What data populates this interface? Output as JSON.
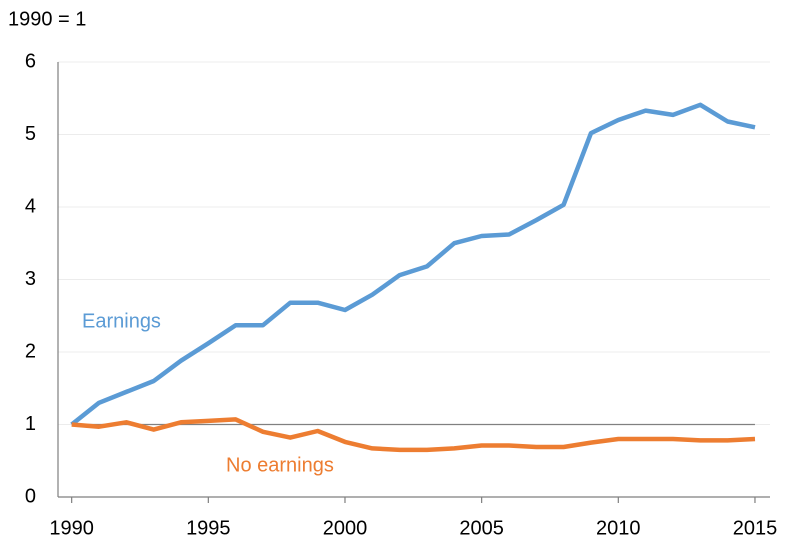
{
  "chart_data": {
    "type": "line",
    "subtitle": "1990 = 1",
    "x": [
      1990,
      1991,
      1992,
      1993,
      1994,
      1995,
      1996,
      1997,
      1998,
      1999,
      2000,
      2001,
      2002,
      2003,
      2004,
      2005,
      2006,
      2007,
      2008,
      2009,
      2010,
      2011,
      2012,
      2013,
      2014,
      2015
    ],
    "series": [
      {
        "name": "Earnings",
        "color": "#5b9bd5",
        "values": [
          1.0,
          1.3,
          1.45,
          1.6,
          1.88,
          2.12,
          2.37,
          2.37,
          2.68,
          2.68,
          2.58,
          2.79,
          3.06,
          3.18,
          3.5,
          3.6,
          3.62,
          3.82,
          4.03,
          5.02,
          5.2,
          5.33,
          5.27,
          5.41,
          5.18,
          5.1
        ]
      },
      {
        "name": "No earnings",
        "color": "#ed7d31",
        "values": [
          1.0,
          0.97,
          1.03,
          0.93,
          1.03,
          1.05,
          1.07,
          0.9,
          0.82,
          0.91,
          0.76,
          0.67,
          0.65,
          0.65,
          0.67,
          0.71,
          0.71,
          0.69,
          0.69,
          0.75,
          0.8,
          0.8,
          0.8,
          0.78,
          0.78,
          0.8
        ]
      }
    ],
    "reference_line": 1,
    "xlim": [
      1989.5,
      2015.55
    ],
    "xticks": [
      1990,
      1995,
      2000,
      2005,
      2010,
      2015
    ],
    "ylim": [
      0,
      6
    ],
    "yticks": [
      0,
      1,
      2,
      3,
      4,
      5,
      6
    ],
    "grid": true
  }
}
